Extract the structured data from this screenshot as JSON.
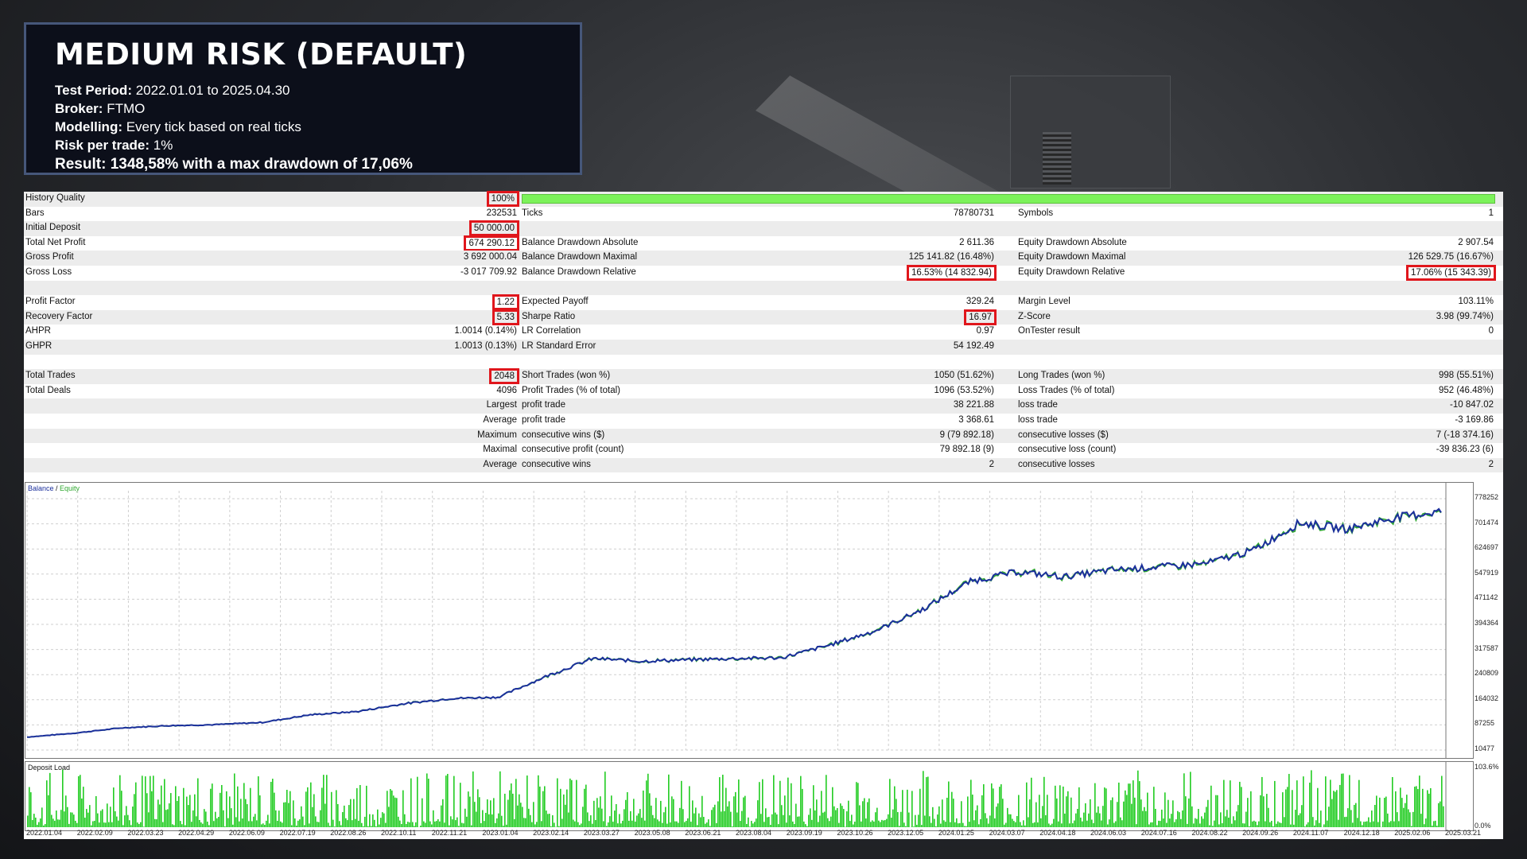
{
  "header": {
    "title": "MEDIUM RISK (DEFAULT)",
    "lines": [
      {
        "label": "Test Period:",
        "value": "2022.01.01 to 2025.04.30"
      },
      {
        "label": "Broker:",
        "value": "FTMO"
      },
      {
        "label": "Modelling:",
        "value": "Every tick based on real ticks"
      },
      {
        "label": "Risk per trade:",
        "value": "1%"
      }
    ],
    "result_label": "Result:",
    "result_value": "1348,58% with a max drawdown of 17,06%"
  },
  "report": {
    "history_quality": {
      "label": "History Quality",
      "value": "100%"
    },
    "rows": [
      {
        "c1l": "Bars",
        "c1v": "232531",
        "c2l": "Ticks",
        "c2v": "78780731",
        "c3l": "Symbols",
        "c3v": "1"
      },
      {
        "c1l": "Initial Deposit",
        "c1v": "50 000.00",
        "c2l": "",
        "c2v": "",
        "c3l": "",
        "c3v": ""
      },
      {
        "c1l": "Total Net Profit",
        "c1v": "674 290.12",
        "c2l": "Balance Drawdown Absolute",
        "c2v": "2 611.36",
        "c3l": "Equity Drawdown Absolute",
        "c3v": "2 907.54"
      },
      {
        "c1l": "Gross Profit",
        "c1v": "3 692 000.04",
        "c2l": "Balance Drawdown Maximal",
        "c2v": "125 141.82 (16.48%)",
        "c3l": "Equity Drawdown Maximal",
        "c3v": "126 529.75 (16.67%)"
      },
      {
        "c1l": "Gross Loss",
        "c1v": "-3 017 709.92",
        "c2l": "Balance Drawdown Relative",
        "c2v": "16.53% (14 832.94)",
        "c3l": "Equity Drawdown Relative",
        "c3v": "17.06% (15 343.39)"
      },
      {
        "c1l": "",
        "c1v": "",
        "c2l": "",
        "c2v": "",
        "c3l": "",
        "c3v": ""
      },
      {
        "c1l": "Profit Factor",
        "c1v": "1.22",
        "c2l": "Expected Payoff",
        "c2v": "329.24",
        "c3l": "Margin Level",
        "c3v": "103.11%"
      },
      {
        "c1l": "Recovery Factor",
        "c1v": "5.33",
        "c2l": "Sharpe Ratio",
        "c2v": "16.97",
        "c3l": "Z-Score",
        "c3v": "3.98 (99.74%)"
      },
      {
        "c1l": "AHPR",
        "c1v": "1.0014 (0.14%)",
        "c2l": "LR Correlation",
        "c2v": "0.97",
        "c3l": "OnTester result",
        "c3v": "0"
      },
      {
        "c1l": "GHPR",
        "c1v": "1.0013 (0.13%)",
        "c2l": "LR Standard Error",
        "c2v": "54 192.49",
        "c3l": "",
        "c3v": ""
      },
      {
        "c1l": "",
        "c1v": "",
        "c2l": "",
        "c2v": "",
        "c3l": "",
        "c3v": ""
      },
      {
        "c1l": "Total Trades",
        "c1v": "2048",
        "c2l": "Short Trades (won %)",
        "c2v": "1050 (51.62%)",
        "c3l": "Long Trades (won %)",
        "c3v": "998 (55.51%)"
      },
      {
        "c1l": "Total Deals",
        "c1v": "4096",
        "c2l": "Profit Trades (% of total)",
        "c2v": "1096 (53.52%)",
        "c3l": "Loss Trades (% of total)",
        "c3v": "952 (46.48%)"
      },
      {
        "c1l": "",
        "c1v": "Largest",
        "c2l": "profit trade",
        "c2v": "38 221.88",
        "c3l": "loss trade",
        "c3v": "-10 847.02"
      },
      {
        "c1l": "",
        "c1v": "Average",
        "c2l": "profit trade",
        "c2v": "3 368.61",
        "c3l": "loss trade",
        "c3v": "-3 169.86"
      },
      {
        "c1l": "",
        "c1v": "Maximum",
        "c2l": "consecutive wins ($)",
        "c2v": "9 (79 892.18)",
        "c3l": "consecutive losses ($)",
        "c3v": "7 (-18 374.16)"
      },
      {
        "c1l": "",
        "c1v": "Maximal",
        "c2l": "consecutive profit (count)",
        "c2v": "79 892.18 (9)",
        "c3l": "consecutive loss (count)",
        "c3v": "-39 836.23 (6)"
      },
      {
        "c1l": "",
        "c1v": "Average",
        "c2l": "consecutive wins",
        "c2v": "2",
        "c3l": "consecutive losses",
        "c3v": "2"
      }
    ]
  },
  "chart_data": {
    "type": "line",
    "legend": [
      "Balance",
      "Equity"
    ],
    "colors": {
      "balance": "#1b2f9c",
      "equity": "#2fa82f",
      "load": "#22cc22"
    },
    "y_ticks": [
      "778252",
      "701474",
      "624697",
      "547919",
      "471142",
      "394364",
      "317587",
      "240809",
      "164032",
      "87255",
      "10477"
    ],
    "ylim": [
      10477,
      778252
    ],
    "x_ticks": [
      "2022.01.04",
      "2022.02.09",
      "2022.03.23",
      "2022.04.29",
      "2022.06.09",
      "2022.07.19",
      "2022.08.26",
      "2022.10.11",
      "2022.11.21",
      "2023.01.04",
      "2023.02.14",
      "2023.03.27",
      "2023.05.08",
      "2023.06.21",
      "2023.08.04",
      "2023.09.19",
      "2023.10.26",
      "2023.12.05",
      "2024.01.25",
      "2024.03.07",
      "2024.04.18",
      "2024.06.03",
      "2024.07.16",
      "2024.08.22",
      "2024.09.26",
      "2024.11.07",
      "2024.12.18",
      "2025.02.06",
      "2025.03.21"
    ],
    "series": [
      {
        "name": "Balance",
        "values": [
          50000,
          62000,
          78000,
          85000,
          88000,
          95000,
          118000,
          128000,
          152000,
          168000,
          172000,
          235000,
          290000,
          282000,
          286000,
          290000,
          292000,
          330000,
          375000,
          440000,
          525000,
          555000,
          540000,
          560000,
          570000,
          580000,
          620000,
          705000,
          685000,
          720000,
          740000
        ]
      }
    ],
    "load_title": "Deposit Load",
    "load_ylabels": [
      "103.6%",
      "0.0%"
    ]
  }
}
